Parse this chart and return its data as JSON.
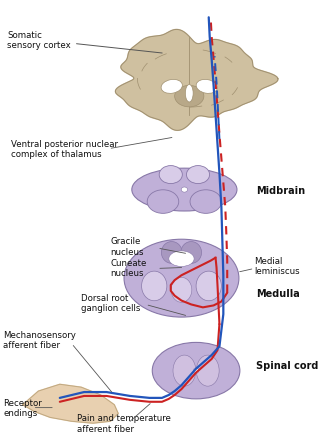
{
  "bg": "#ffffff",
  "colors": {
    "brain_fill": "#cfc0a0",
    "brain_edge": "#a09070",
    "brain_inner": "#b8a888",
    "brainstem_fill": "#c0b0d8",
    "brainstem_edge": "#8878a8",
    "brainstem_inner": "#d8cce8",
    "blue_path": "#2255bb",
    "red_path": "#cc2222",
    "skin_fill": "#e8d0b0",
    "skin_edge": "#c0a880",
    "label_color": "#111111",
    "arrow_color": "#555555",
    "white": "#ffffff",
    "nucleus_color": "#a898c0",
    "grey_matter": "#d0c0e0"
  },
  "labels": {
    "somatic_sensory_cortex": "Somatic\nsensory cortex",
    "ventral_posterior": "Ventral posterior nuclear\ncomplex of thalamus",
    "midbrain": "Midbrain",
    "gracile_nucleus": "Gracile\nnucleus",
    "cuneate_nucleus": "Cuneate\nnucleus",
    "dorsal_root": "Dorsal root\nganglion cells",
    "medial_lemniscus": "Medial\nleminiscus",
    "medulla": "Medulla",
    "mechanosensory": "Mechanosensory\nafferent fiber",
    "receptor_endings": "Receptor\nendings",
    "pain_temperature": "Pain and temperature\nafferent fiber",
    "spinal_cord": "Spinal cord"
  },
  "font_sizes": {
    "label": 6.2,
    "bold_label": 7.0
  }
}
